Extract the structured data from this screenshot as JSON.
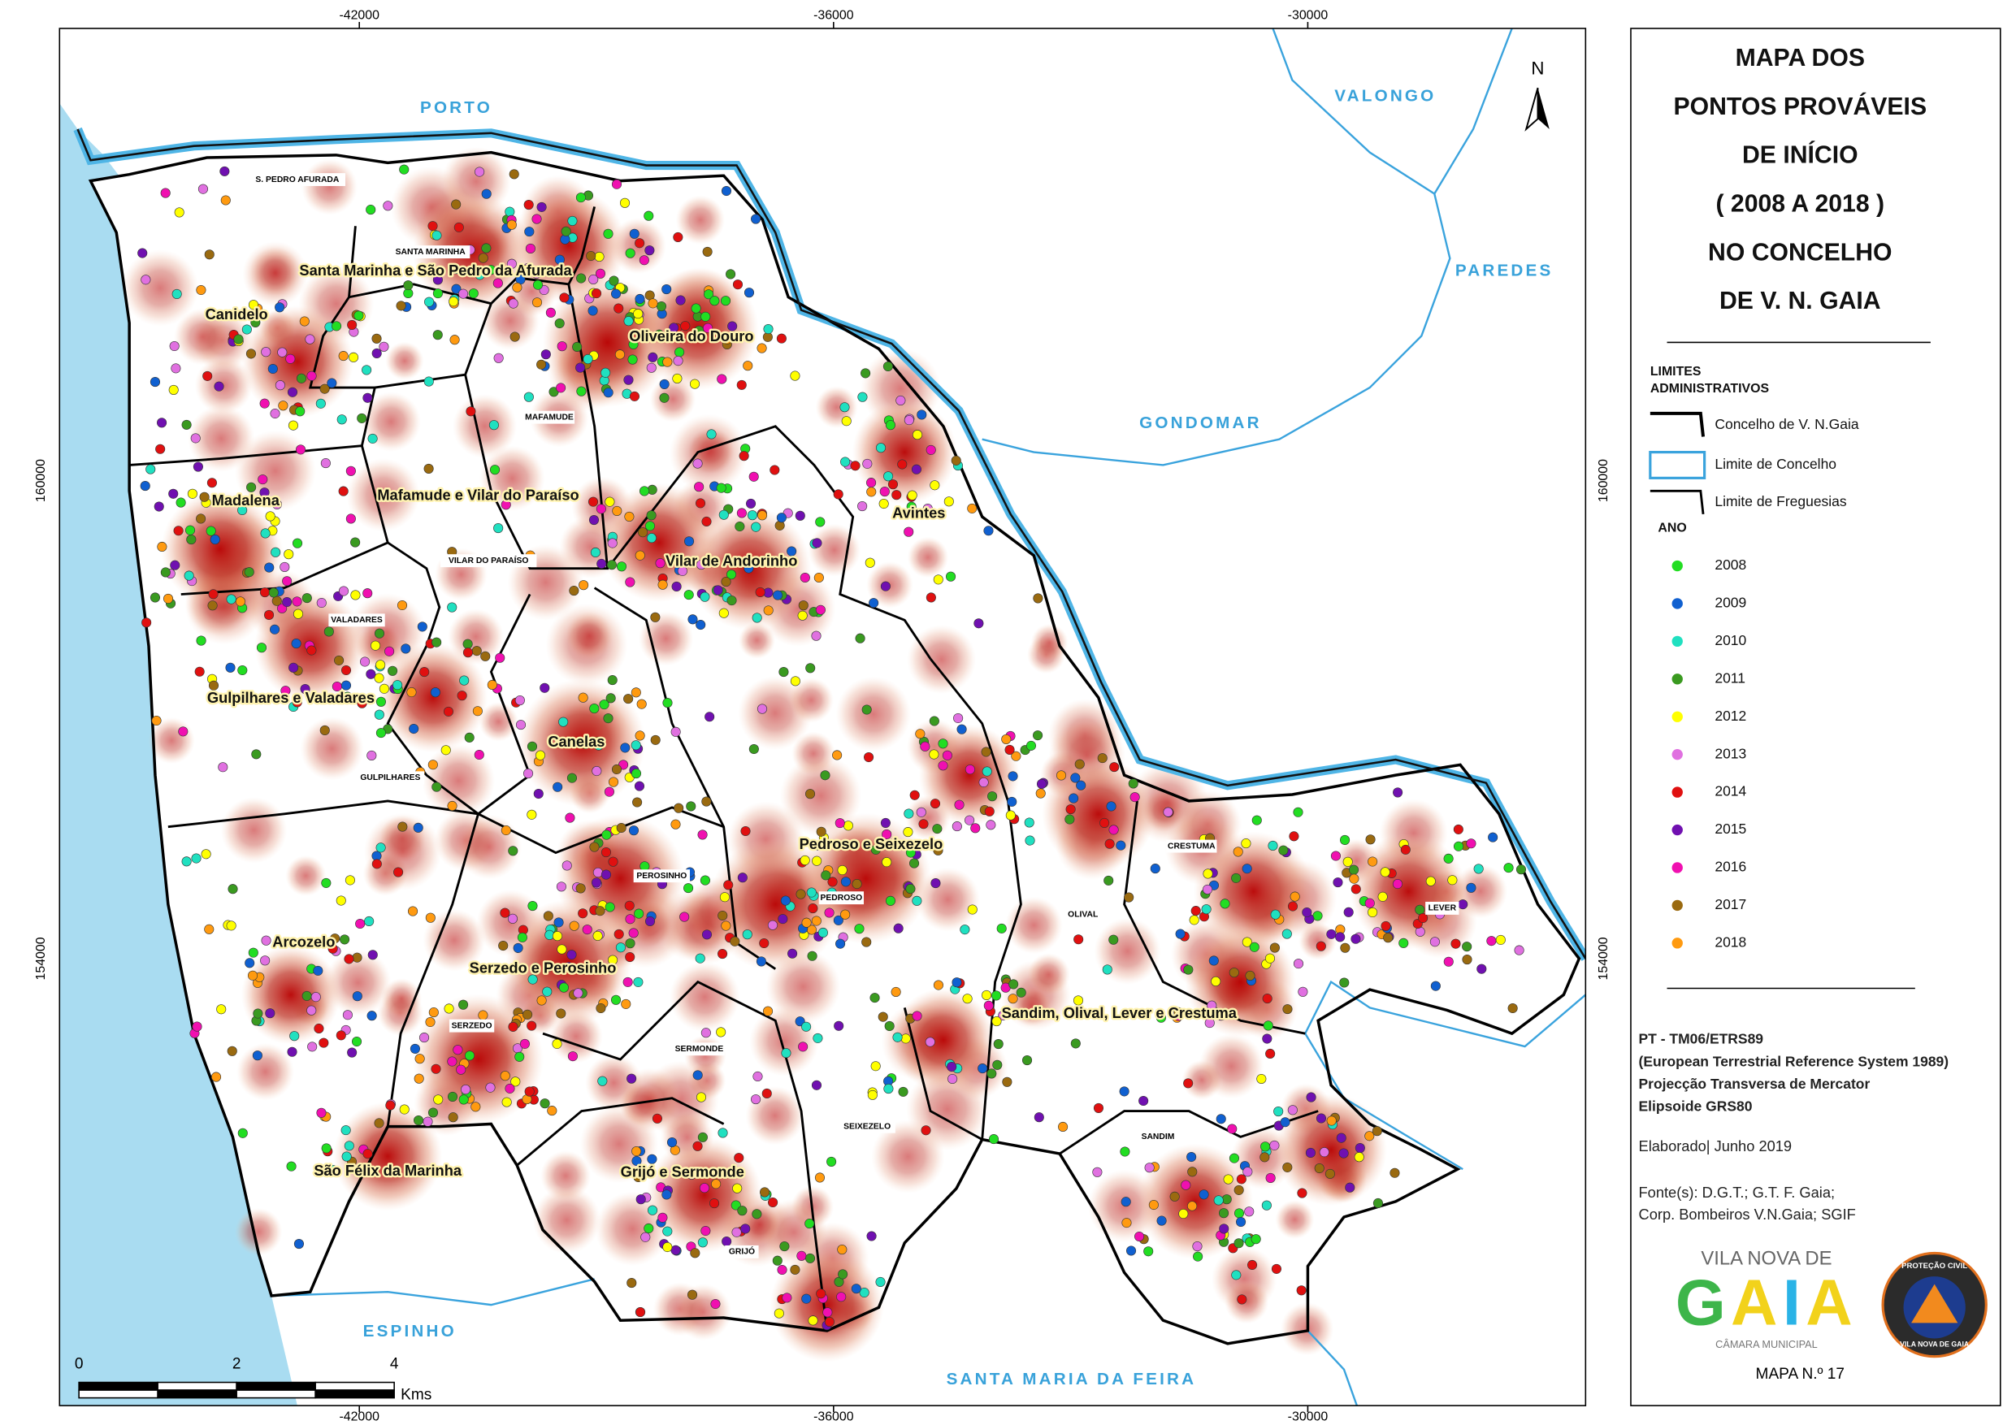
{
  "map": {
    "top_ticks": [
      "-42000",
      "-36000",
      "-30000"
    ],
    "bottom_ticks": [
      "-42000",
      "-36000",
      "-30000"
    ],
    "left_ticks": [
      "160000",
      "154000"
    ],
    "right_ticks": [
      "160000",
      "154000"
    ],
    "north": "N",
    "neighbors": [
      "PORTO",
      "VALONGO",
      "PAREDES",
      "GONDOMAR",
      "ESPINHO",
      "SANTA MARIA DA FEIRA"
    ],
    "parishes": [
      "Santa Marinha e São Pedro da Afurada",
      "Canidelo",
      "Oliveira do Douro",
      "Mafamude e Vilar do Paraíso",
      "Madalena",
      "Avintes",
      "Vilar de Andorinho",
      "Gulpilhares e Valadares",
      "Canelas",
      "Pedroso e Seixezelo",
      "Arcozelo",
      "Serzedo e Perosinho",
      "Sandim, Olival, Lever e Crestuma",
      "São Félix da Marinha",
      "Grijó e Sermonde"
    ],
    "former_parishes": [
      "S. PEDRO AFURADA",
      "SANTA MARINHA",
      "MAFAMUDE",
      "VILAR DO PARAÍSO",
      "VALADARES",
      "GULPILHARES",
      "PEROSINHO",
      "PEDROSO",
      "CRESTUMA",
      "OLIVAL",
      "LEVER",
      "SERZEDO",
      "SERMONDE",
      "SEIXEZELO",
      "SANDIM",
      "GRIJÓ"
    ],
    "scale": {
      "ticks": [
        "0",
        "2",
        "4"
      ],
      "unit": "Kms"
    }
  },
  "legend": {
    "title": [
      "MAPA DOS",
      "PONTOS PROVÁVEIS",
      "DE INÍCIO",
      "( 2008 A 2018 )",
      "NO CONCELHO",
      "DE V. N. GAIA"
    ],
    "limits_title": [
      "LIMITES",
      "ADMINISTRATIVOS"
    ],
    "limits": [
      "Concelho de V. N.Gaia",
      "Limite de Concelho",
      "Limite de Freguesias"
    ],
    "year_title": "ANO",
    "years": [
      {
        "label": "2008",
        "color": "#22dd22"
      },
      {
        "label": "2009",
        "color": "#1060d0"
      },
      {
        "label": "2010",
        "color": "#20e0c0"
      },
      {
        "label": "2011",
        "color": "#3a9a20"
      },
      {
        "label": "2012",
        "color": "#ffff00"
      },
      {
        "label": "2013",
        "color": "#e070e0"
      },
      {
        "label": "2014",
        "color": "#e01010"
      },
      {
        "label": "2015",
        "color": "#7010b0"
      },
      {
        "label": "2016",
        "color": "#f010b0"
      },
      {
        "label": "2017",
        "color": "#9a6a10"
      },
      {
        "label": "2018",
        "color": "#ff9a10"
      }
    ]
  },
  "info": {
    "projection": [
      "PT - TM06/ETRS89",
      "(European Terrestrial Reference System 1989)",
      "Projecção Transversa de Mercator",
      "Elipsoide GRS80"
    ],
    "elaborated": "Elaborado| Junho 2019",
    "sources": [
      "Fonte(s): D.G.T.; G.T. F. Gaia;",
      "Corp. Bombeiros V.N.Gaia; SGIF"
    ],
    "logo": {
      "top": "VILA NOVA DE",
      "name": "GAIA",
      "sub": "CÂMARA MUNICIPAL"
    },
    "badge": [
      "PROTEÇÃO CIVIL",
      "VILA NOVA DE GAIA"
    ],
    "map_number": "MAPA N.º 17"
  }
}
